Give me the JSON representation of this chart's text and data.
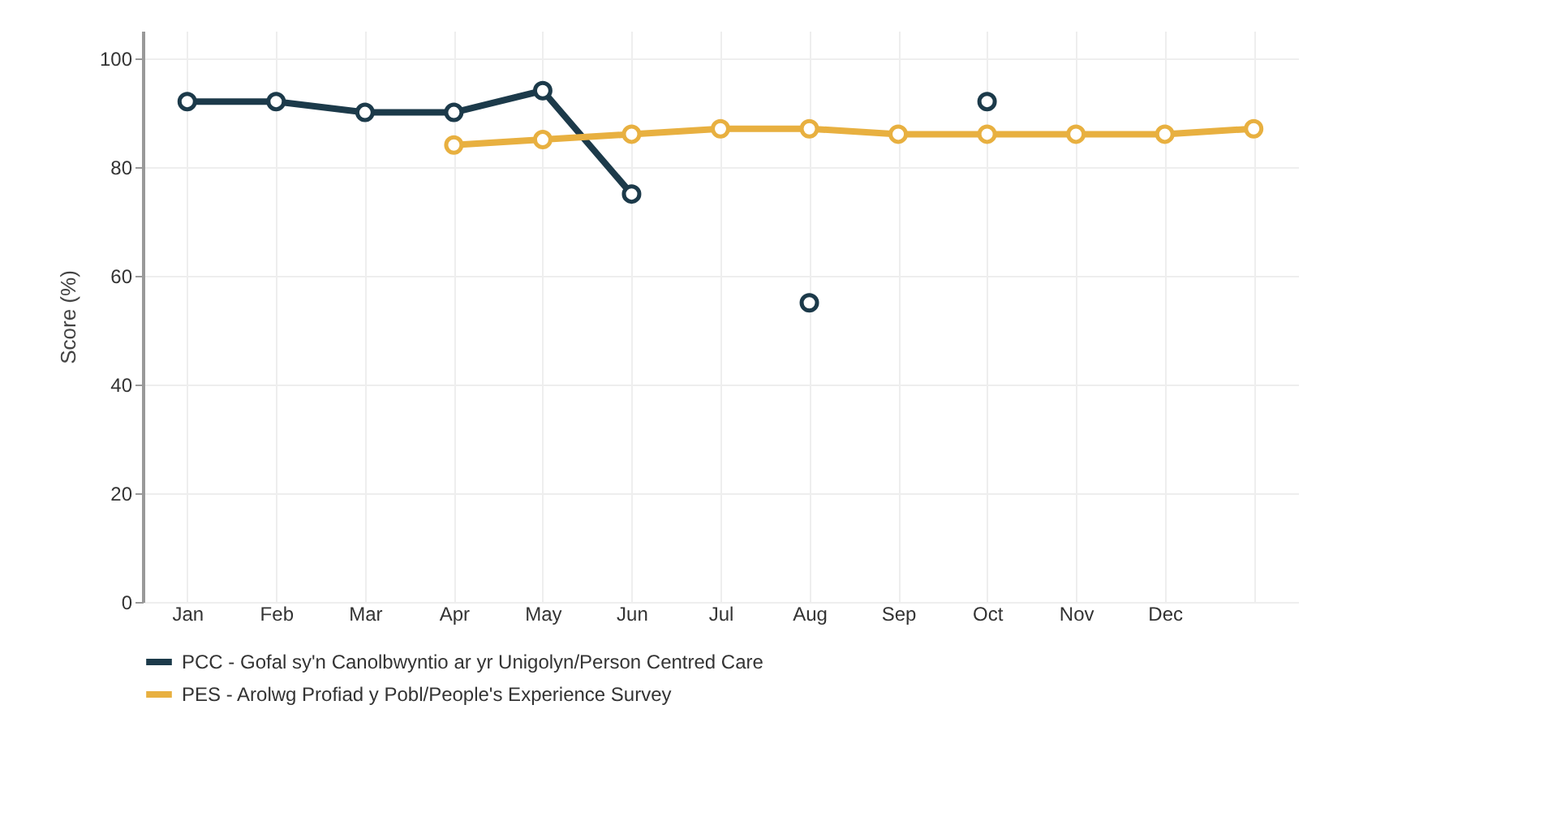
{
  "chart_data": {
    "type": "line",
    "ylabel": "Score (%)",
    "categories": [
      "Jan",
      "Feb",
      "Mar",
      "Apr",
      "May",
      "Jun",
      "Jul",
      "Aug",
      "Sep",
      "Oct",
      "Nov",
      "Dec",
      null
    ],
    "series": [
      {
        "name": "PCC - Gofal sy'n Canolbwyntio ar yr Unigolyn/Person Centred Care",
        "color": "#1c3a4a",
        "values": [
          92,
          92,
          90,
          90,
          94,
          75,
          null,
          55,
          null,
          92,
          null,
          null,
          null
        ]
      },
      {
        "name": "PES - Arolwg Profiad y Pobl/People's Experience Survey",
        "color": "#e8b040",
        "values": [
          null,
          null,
          null,
          84,
          85,
          86,
          87,
          87,
          86,
          86,
          86,
          86,
          87
        ]
      }
    ],
    "ylim": [
      0,
      105
    ],
    "yticks": [
      0,
      20,
      40,
      60,
      80,
      100
    ],
    "grid": true,
    "legend": "bottom",
    "marker": "circle",
    "line_style": "solid"
  }
}
